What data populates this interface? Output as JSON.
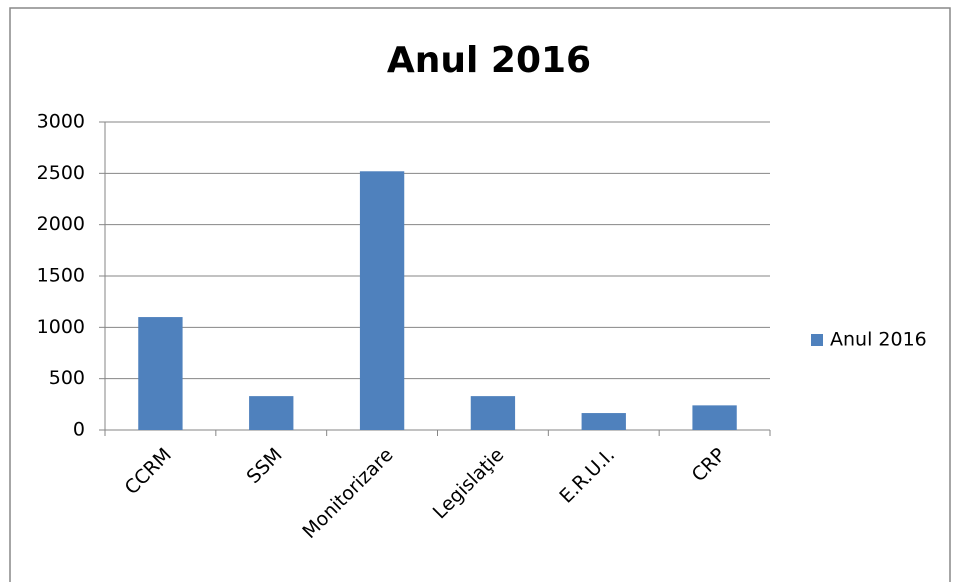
{
  "chart_data": {
    "type": "bar",
    "title": "Anul 2016",
    "categories": [
      "CCRM",
      "SSM",
      "Monitorizare",
      "Legislaţie",
      "E.R.U.I.",
      "CRP"
    ],
    "series": [
      {
        "name": "Anul 2016",
        "color": "#4f81bd",
        "values": [
          1100,
          330,
          2520,
          330,
          165,
          240
        ]
      }
    ],
    "ylim": [
      0,
      3000
    ],
    "yticks": [
      0,
      500,
      1000,
      1500,
      2000,
      2500,
      3000
    ],
    "grid": true,
    "legend": "right"
  }
}
